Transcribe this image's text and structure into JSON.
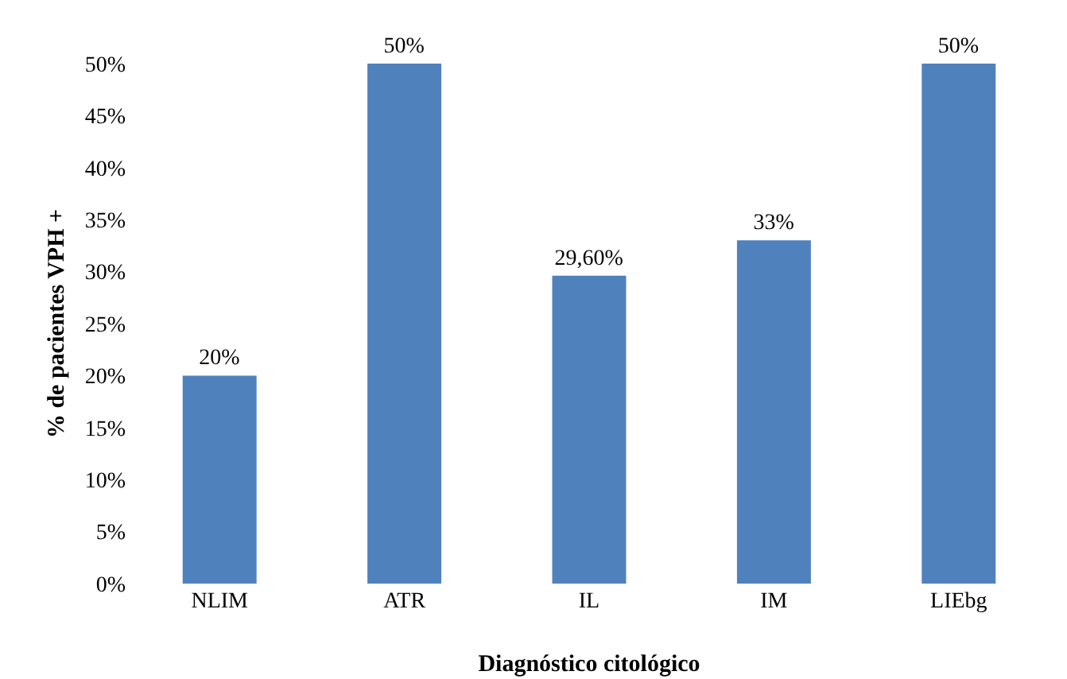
{
  "chart_data": {
    "type": "bar",
    "xlabel": "Diagnóstico citológico",
    "ylabel": "% de pacientes VPH +",
    "categories": [
      "NLIM",
      "ATR",
      "IL",
      "IM",
      "LIEbg"
    ],
    "values": [
      20,
      50,
      29.6,
      33,
      50
    ],
    "value_labels": [
      "20%",
      "50%",
      "29,60%",
      "33%",
      "50%"
    ],
    "color": "#4f81bd",
    "ylim": [
      0,
      50
    ],
    "yticks": [
      {
        "value": 0,
        "label": "0%"
      },
      {
        "value": 5,
        "label": "5%"
      },
      {
        "value": 10,
        "label": "10%"
      },
      {
        "value": 15,
        "label": "15%"
      },
      {
        "value": 20,
        "label": "20%"
      },
      {
        "value": 25,
        "label": "25%"
      },
      {
        "value": 30,
        "label": "30%"
      },
      {
        "value": 35,
        "label": "35%"
      },
      {
        "value": 40,
        "label": "40%"
      },
      {
        "value": 45,
        "label": "45%"
      },
      {
        "value": 50,
        "label": "50%"
      }
    ],
    "grid": false,
    "legend": false
  }
}
